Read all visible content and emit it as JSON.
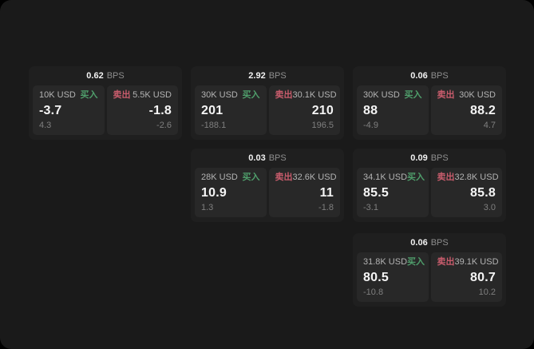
{
  "labels": {
    "buy": "买入",
    "sell": "卖出",
    "bps_unit": "BPS"
  },
  "colors": {
    "buy_green": "#4f9e6b",
    "sell_red": "#c85c6c",
    "page_bg": "#1a1a1a",
    "card_bg": "#1f1f1f",
    "panel_bg": "#282828"
  },
  "cards": [
    {
      "bps": "0.62",
      "buy": {
        "amount": "10K USD",
        "price": "-3.7",
        "delta": "4.3"
      },
      "sell": {
        "amount": "5.5K USD",
        "price": "-1.8",
        "delta": "-2.6"
      }
    },
    {
      "bps": "2.92",
      "buy": {
        "amount": "30K USD",
        "price": "201",
        "delta": "-188.1"
      },
      "sell": {
        "amount": "30.1K USD",
        "price": "210",
        "delta": "196.5"
      }
    },
    {
      "bps": "0.06",
      "buy": {
        "amount": "30K USD",
        "price": "88",
        "delta": "-4.9"
      },
      "sell": {
        "amount": "30K USD",
        "price": "88.2",
        "delta": "4.7"
      }
    },
    {
      "bps": "0.03",
      "buy": {
        "amount": "28K USD",
        "price": "10.9",
        "delta": "1.3"
      },
      "sell": {
        "amount": "32.6K USD",
        "price": "11",
        "delta": "-1.8"
      }
    },
    {
      "bps": "0.09",
      "buy": {
        "amount": "34.1K USD",
        "price": "85.5",
        "delta": "-3.1"
      },
      "sell": {
        "amount": "32.8K USD",
        "price": "85.8",
        "delta": "3.0"
      }
    },
    {
      "bps": "0.06",
      "buy": {
        "amount": "31.8K USD",
        "price": "80.5",
        "delta": "-10.8"
      },
      "sell": {
        "amount": "39.1K USD",
        "price": "80.7",
        "delta": "10.2"
      }
    }
  ]
}
